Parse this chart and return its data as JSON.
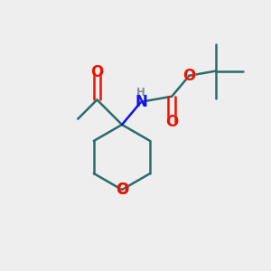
{
  "background_color": "#eeeeee",
  "bond_color": "#2a6b6b",
  "oxygen_color": "#ee1100",
  "nitrogen_color": "#1111ee",
  "hydrogen_color": "#888899",
  "line_width": 1.8,
  "figsize": [
    3.0,
    3.0
  ],
  "dpi": 100,
  "xlim": [
    0,
    10
  ],
  "ylim": [
    0,
    10
  ]
}
